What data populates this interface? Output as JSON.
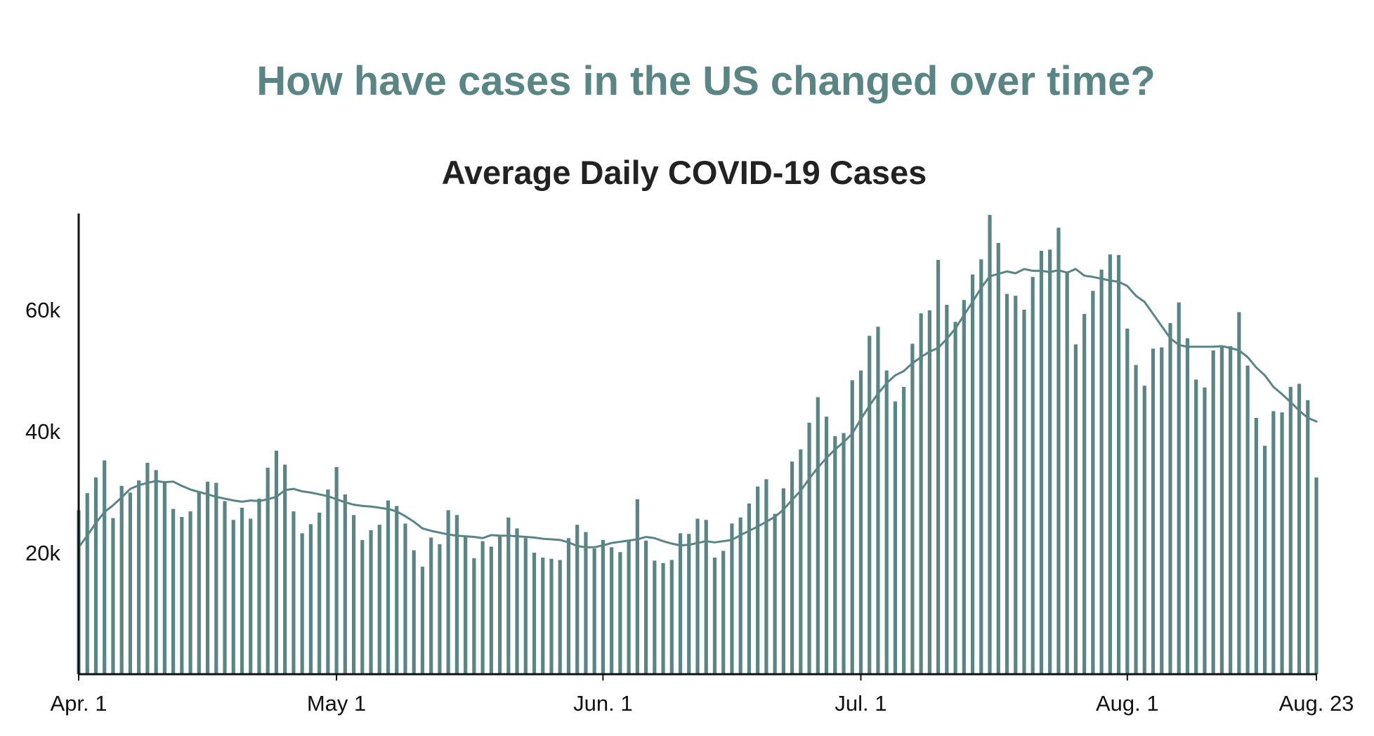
{
  "header": {
    "title": "How have cases in the US changed over time?"
  },
  "colors": {
    "title": "#5a8585",
    "bars": "#5a8585",
    "average_line": "#5a8585",
    "axis": "#111111"
  },
  "chart_data": {
    "type": "bar",
    "title": "Average Daily COVID-19 Cases",
    "xlabel": "",
    "ylabel": "",
    "x_start": "2020-04-01",
    "x_end": "2020-08-23",
    "ylim": [
      0,
      76000
    ],
    "grid": false,
    "legend": "none",
    "x_ticks": [
      {
        "date": "2020-04-01",
        "label": "Apr. 1"
      },
      {
        "date": "2020-05-01",
        "label": "May 1"
      },
      {
        "date": "2020-06-01",
        "label": "Jun. 1"
      },
      {
        "date": "2020-07-01",
        "label": "Jul. 1"
      },
      {
        "date": "2020-08-01",
        "label": "Aug. 1"
      },
      {
        "date": "2020-08-23",
        "label": "Aug. 23"
      }
    ],
    "y_ticks": [
      {
        "value": 20000,
        "label": "20k"
      },
      {
        "value": 40000,
        "label": "40k"
      },
      {
        "value": 60000,
        "label": "60k"
      }
    ],
    "series": [
      {
        "kind": "bar",
        "values": [
          27000,
          29800,
          32400,
          35200,
          25700,
          31000,
          29900,
          31900,
          34800,
          33600,
          31800,
          27200,
          25900,
          26800,
          30100,
          31700,
          31500,
          28500,
          25400,
          27400,
          25600,
          28900,
          34000,
          36800,
          34500,
          26800,
          23200,
          24700,
          26600,
          30400,
          34100,
          29600,
          26200,
          22100,
          23700,
          24600,
          28600,
          27700,
          24800,
          20400,
          17700,
          22500,
          21400,
          27000,
          26200,
          22700,
          19100,
          21900,
          21000,
          22900,
          25800,
          24000,
          22400,
          20000,
          19200,
          19000,
          18800,
          22400,
          24600,
          23400,
          20700,
          22100,
          20900,
          20100,
          21900,
          28800,
          22000,
          18700,
          18300,
          18800,
          23200,
          23100,
          25600,
          25400,
          19200,
          20300,
          24800,
          25800,
          28100,
          30900,
          32100,
          26400,
          30600,
          35000,
          37000,
          41400,
          45600,
          42400,
          39200,
          39700,
          48400,
          50000,
          55700,
          57200,
          50000,
          44900,
          47300,
          54400,
          59400,
          59900,
          68200,
          60800,
          58000,
          61600,
          65800,
          68300,
          75600,
          71000,
          62600,
          62300,
          60000,
          65400,
          69700,
          69900,
          73500,
          66300,
          54300,
          59300,
          63100,
          66600,
          69100,
          69000,
          56900,
          50900,
          47500,
          53600,
          53800,
          57800,
          61200,
          55300,
          48500,
          47200,
          53300,
          54100,
          54000,
          59600,
          50800,
          42200,
          37600,
          43300,
          43100,
          47300,
          47800,
          45100,
          32400
        ]
      },
      {
        "kind": "line",
        "name": "",
        "values": [
          20900,
          22800,
          24900,
          26700,
          27800,
          29100,
          30500,
          31100,
          31500,
          31800,
          31600,
          31700,
          31000,
          30400,
          30000,
          29600,
          29200,
          28900,
          28600,
          28400,
          28600,
          28500,
          28800,
          29200,
          30300,
          30500,
          30100,
          29900,
          29600,
          29300,
          28800,
          28300,
          27900,
          27700,
          27600,
          27400,
          27200,
          26800,
          26000,
          25100,
          24000,
          23600,
          23300,
          23000,
          22800,
          22700,
          22600,
          22400,
          22900,
          22800,
          22800,
          22700,
          22600,
          22500,
          22300,
          22200,
          22100,
          21700,
          21100,
          20900,
          20900,
          21200,
          21600,
          21800,
          22000,
          22200,
          22600,
          22400,
          21900,
          21500,
          21200,
          21300,
          21600,
          21900,
          21700,
          21900,
          22100,
          22900,
          23600,
          24300,
          25100,
          25900,
          27100,
          28700,
          30200,
          32200,
          34000,
          35600,
          37000,
          38200,
          39600,
          42000,
          44200,
          46200,
          47900,
          49200,
          49900,
          51200,
          52200,
          53100,
          53700,
          55200,
          56900,
          59100,
          61300,
          63600,
          65500,
          65900,
          66300,
          66000,
          66700,
          66400,
          66400,
          66200,
          66500,
          66100,
          66700,
          65600,
          65400,
          65100,
          64800,
          64600,
          63900,
          62300,
          61300,
          59300,
          57300,
          55300,
          54200,
          53900,
          53900,
          53900,
          53900,
          54000,
          53700,
          53300,
          52200,
          50500,
          49200,
          47300,
          46100,
          44800,
          43400,
          42200,
          41600
        ]
      }
    ]
  }
}
